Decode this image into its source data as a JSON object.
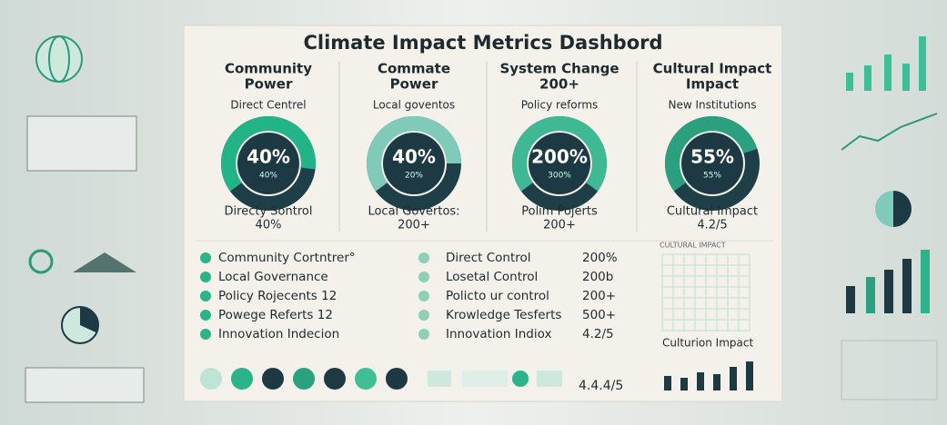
{
  "header": {
    "title": "Climate Impact Metrics Dashbord"
  },
  "cards": [
    {
      "title": [
        "Community",
        "Power"
      ],
      "subtitle": "Direct Centrel",
      "center": "40%",
      "center_small": "40%",
      "bottom": [
        "Directy Sontrol",
        "40%"
      ]
    },
    {
      "title": [
        "Commate",
        "Power"
      ],
      "subtitle": "Local goventos",
      "center": "40%",
      "center_small": "20%",
      "bottom": [
        "Local Govertos:",
        "200+"
      ]
    },
    {
      "title": [
        "System Change",
        "200+"
      ],
      "subtitle": "Policy reforms",
      "center": "200%",
      "center_small": "300%",
      "bottom": [
        "Polim Pojerts",
        "200+"
      ]
    },
    {
      "title": [
        "Cultural Impact",
        "Impact"
      ],
      "subtitle": "New Institutions",
      "center": "55%",
      "center_small": "55%",
      "bottom": [
        "Cultural Impact",
        "4.2/5"
      ]
    }
  ],
  "lists": {
    "left": [
      "Community Cortntrer°",
      "Local Governance",
      "Policy Rojecents 12",
      "Powege Referts 12",
      "Innovation Indecion"
    ],
    "right": [
      {
        "label": "Direct Control",
        "value": "200%"
      },
      {
        "label": "Losetal Control",
        "value": "200b"
      },
      {
        "label": "Policto ur control",
        "value": "200+"
      },
      {
        "label": "Krowledge Tesferts",
        "value": "500+"
      },
      {
        "label": "Innovation Indiox",
        "value": "4.2/5"
      }
    ]
  },
  "mini_chart": {
    "header": "CULTURAL IMPACT",
    "caption": "Culturion Impact"
  },
  "footer_score": "4.4.4/5"
}
